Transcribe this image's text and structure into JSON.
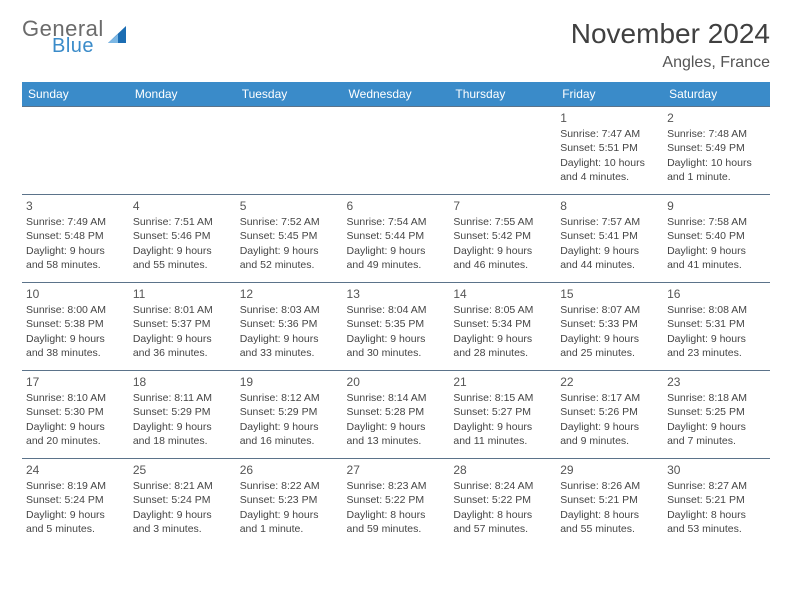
{
  "brand": {
    "text1": "General",
    "text2": "Blue",
    "logo_color": "#1b6db3"
  },
  "title": "November 2024",
  "location": "Angles, France",
  "colors": {
    "header_bg": "#3a8bc9",
    "header_fg": "#ffffff",
    "cell_border": "#5b738a",
    "daynum": "#555555",
    "text": "#454545",
    "title": "#404040"
  },
  "fonts": {
    "title_size": 28,
    "location_size": 16,
    "th_size": 12,
    "cell_size": 10.5,
    "daynum_size": 12
  },
  "columns": [
    "Sunday",
    "Monday",
    "Tuesday",
    "Wednesday",
    "Thursday",
    "Friday",
    "Saturday"
  ],
  "weeks": [
    [
      null,
      null,
      null,
      null,
      null,
      {
        "n": "1",
        "sunrise": "7:47 AM",
        "sunset": "5:51 PM",
        "daylight": "10 hours and 4 minutes."
      },
      {
        "n": "2",
        "sunrise": "7:48 AM",
        "sunset": "5:49 PM",
        "daylight": "10 hours and 1 minute."
      }
    ],
    [
      {
        "n": "3",
        "sunrise": "7:49 AM",
        "sunset": "5:48 PM",
        "daylight": "9 hours and 58 minutes."
      },
      {
        "n": "4",
        "sunrise": "7:51 AM",
        "sunset": "5:46 PM",
        "daylight": "9 hours and 55 minutes."
      },
      {
        "n": "5",
        "sunrise": "7:52 AM",
        "sunset": "5:45 PM",
        "daylight": "9 hours and 52 minutes."
      },
      {
        "n": "6",
        "sunrise": "7:54 AM",
        "sunset": "5:44 PM",
        "daylight": "9 hours and 49 minutes."
      },
      {
        "n": "7",
        "sunrise": "7:55 AM",
        "sunset": "5:42 PM",
        "daylight": "9 hours and 46 minutes."
      },
      {
        "n": "8",
        "sunrise": "7:57 AM",
        "sunset": "5:41 PM",
        "daylight": "9 hours and 44 minutes."
      },
      {
        "n": "9",
        "sunrise": "7:58 AM",
        "sunset": "5:40 PM",
        "daylight": "9 hours and 41 minutes."
      }
    ],
    [
      {
        "n": "10",
        "sunrise": "8:00 AM",
        "sunset": "5:38 PM",
        "daylight": "9 hours and 38 minutes."
      },
      {
        "n": "11",
        "sunrise": "8:01 AM",
        "sunset": "5:37 PM",
        "daylight": "9 hours and 36 minutes."
      },
      {
        "n": "12",
        "sunrise": "8:03 AM",
        "sunset": "5:36 PM",
        "daylight": "9 hours and 33 minutes."
      },
      {
        "n": "13",
        "sunrise": "8:04 AM",
        "sunset": "5:35 PM",
        "daylight": "9 hours and 30 minutes."
      },
      {
        "n": "14",
        "sunrise": "8:05 AM",
        "sunset": "5:34 PM",
        "daylight": "9 hours and 28 minutes."
      },
      {
        "n": "15",
        "sunrise": "8:07 AM",
        "sunset": "5:33 PM",
        "daylight": "9 hours and 25 minutes."
      },
      {
        "n": "16",
        "sunrise": "8:08 AM",
        "sunset": "5:31 PM",
        "daylight": "9 hours and 23 minutes."
      }
    ],
    [
      {
        "n": "17",
        "sunrise": "8:10 AM",
        "sunset": "5:30 PM",
        "daylight": "9 hours and 20 minutes."
      },
      {
        "n": "18",
        "sunrise": "8:11 AM",
        "sunset": "5:29 PM",
        "daylight": "9 hours and 18 minutes."
      },
      {
        "n": "19",
        "sunrise": "8:12 AM",
        "sunset": "5:29 PM",
        "daylight": "9 hours and 16 minutes."
      },
      {
        "n": "20",
        "sunrise": "8:14 AM",
        "sunset": "5:28 PM",
        "daylight": "9 hours and 13 minutes."
      },
      {
        "n": "21",
        "sunrise": "8:15 AM",
        "sunset": "5:27 PM",
        "daylight": "9 hours and 11 minutes."
      },
      {
        "n": "22",
        "sunrise": "8:17 AM",
        "sunset": "5:26 PM",
        "daylight": "9 hours and 9 minutes."
      },
      {
        "n": "23",
        "sunrise": "8:18 AM",
        "sunset": "5:25 PM",
        "daylight": "9 hours and 7 minutes."
      }
    ],
    [
      {
        "n": "24",
        "sunrise": "8:19 AM",
        "sunset": "5:24 PM",
        "daylight": "9 hours and 5 minutes."
      },
      {
        "n": "25",
        "sunrise": "8:21 AM",
        "sunset": "5:24 PM",
        "daylight": "9 hours and 3 minutes."
      },
      {
        "n": "26",
        "sunrise": "8:22 AM",
        "sunset": "5:23 PM",
        "daylight": "9 hours and 1 minute."
      },
      {
        "n": "27",
        "sunrise": "8:23 AM",
        "sunset": "5:22 PM",
        "daylight": "8 hours and 59 minutes."
      },
      {
        "n": "28",
        "sunrise": "8:24 AM",
        "sunset": "5:22 PM",
        "daylight": "8 hours and 57 minutes."
      },
      {
        "n": "29",
        "sunrise": "8:26 AM",
        "sunset": "5:21 PM",
        "daylight": "8 hours and 55 minutes."
      },
      {
        "n": "30",
        "sunrise": "8:27 AM",
        "sunset": "5:21 PM",
        "daylight": "8 hours and 53 minutes."
      }
    ]
  ]
}
